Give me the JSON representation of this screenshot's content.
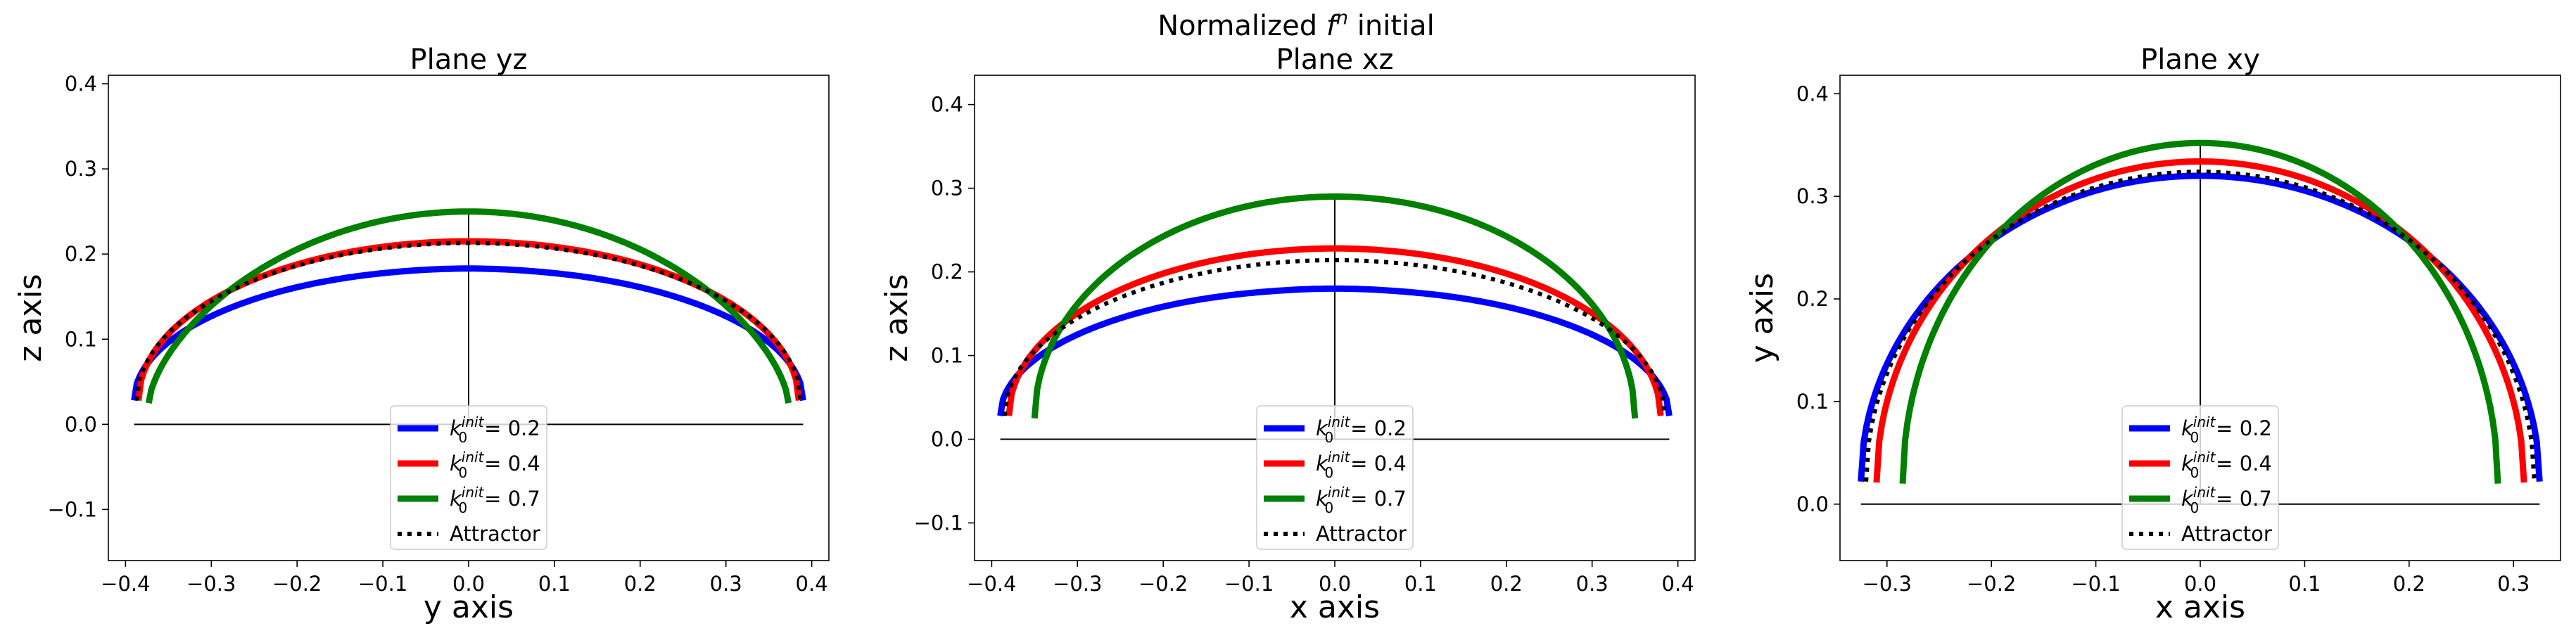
{
  "figure_title": "Normalized f^n initial",
  "colors": {
    "k02": "#0000ff",
    "k04": "#ff0000",
    "k07": "#008000",
    "attractor": "#000000",
    "axes": "#000000"
  },
  "legend_labels": [
    "k_0^init = 0.2",
    "k_0^init = 0.4",
    "k_0^init = 0.7",
    "Attractor"
  ],
  "chart_data": [
    {
      "type": "line",
      "title": "Plane yz",
      "xlabel": "y axis",
      "ylabel": "z axis",
      "xlim": [
        -0.42,
        0.42
      ],
      "ylim": [
        -0.16,
        0.41
      ],
      "xticks": [
        -0.4,
        -0.3,
        -0.2,
        -0.1,
        0.0,
        0.1,
        0.2,
        0.3,
        0.4
      ],
      "yticks": [
        -0.1,
        0.0,
        0.1,
        0.2,
        0.3,
        0.4
      ],
      "xtick_labels": [
        "−0.4",
        "−0.3",
        "−0.2",
        "−0.1",
        "0.0",
        "0.1",
        "0.2",
        "0.3",
        "0.4"
      ],
      "ytick_labels": [
        "−0.1",
        "0.0",
        "0.1",
        "0.2",
        "0.3",
        "0.4"
      ],
      "reference_lines": {
        "hline": [
          -0.39,
          0.39,
          0.0
        ],
        "vline": [
          0.0,
          0.0,
          0.25
        ]
      },
      "legend": "lower center",
      "series": [
        {
          "name": "k0=0.2",
          "color": "#0000ff",
          "style": "solid",
          "Rx": 0.39,
          "y0": 0.028,
          "Rtop": 0.183,
          "dip": 0.026,
          "sigma": 0.09
        },
        {
          "name": "k0=0.4",
          "color": "#ff0000",
          "style": "solid",
          "Rx": 0.385,
          "y0": 0.028,
          "Rtop": 0.215,
          "dip": 0.007,
          "sigma": 0.09
        },
        {
          "name": "k0=0.7",
          "color": "#008000",
          "style": "solid",
          "Rx": 0.373,
          "y0": 0.025,
          "Rtop": 0.25,
          "dip": 0.0,
          "sigma": 0.09,
          "ex": 0.15
        },
        {
          "name": "Attractor",
          "color": "#000000",
          "style": "dotted",
          "Rx": 0.387,
          "y0": 0.028,
          "Rtop": 0.213,
          "dip": 0.011,
          "sigma": 0.09
        }
      ]
    },
    {
      "type": "line",
      "title": "Plane xz",
      "xlabel": "x axis",
      "ylabel": "z axis",
      "xlim": [
        -0.42,
        0.42
      ],
      "ylim": [
        -0.145,
        0.435
      ],
      "xticks": [
        -0.4,
        -0.3,
        -0.2,
        -0.1,
        0.0,
        0.1,
        0.2,
        0.3,
        0.4
      ],
      "yticks": [
        -0.1,
        0.0,
        0.1,
        0.2,
        0.3,
        0.4
      ],
      "xtick_labels": [
        "−0.4",
        "−0.3",
        "−0.2",
        "−0.1",
        "0.0",
        "0.1",
        "0.2",
        "0.3",
        "0.4"
      ],
      "ytick_labels": [
        "−0.1",
        "0.0",
        "0.1",
        "0.2",
        "0.3",
        "0.4"
      ],
      "reference_lines": {
        "hline": [
          -0.39,
          0.39,
          0.0
        ],
        "vline": [
          0.0,
          0.0,
          0.29
        ]
      },
      "legend": "lower center",
      "series": [
        {
          "name": "k0=0.2",
          "color": "#0000ff",
          "style": "solid",
          "Rx": 0.39,
          "y0": 0.028,
          "Rtop": 0.18,
          "dip": 0.035,
          "sigma": 0.085
        },
        {
          "name": "k0=0.4",
          "color": "#ff0000",
          "style": "solid",
          "Rx": 0.38,
          "y0": 0.028,
          "Rtop": 0.228,
          "dip": 0.0,
          "sigma": 0.09
        },
        {
          "name": "k0=0.7",
          "color": "#008000",
          "style": "solid",
          "Rx": 0.35,
          "y0": 0.025,
          "Rtop": 0.29,
          "dip": 0.0,
          "sigma": 0.09
        },
        {
          "name": "Attractor",
          "color": "#000000",
          "style": "dotted",
          "Rx": 0.385,
          "y0": 0.028,
          "Rtop": 0.214,
          "dip": 0.012,
          "sigma": 0.09
        }
      ]
    },
    {
      "type": "line",
      "title": "Plane xy",
      "xlabel": "x axis",
      "ylabel": "y axis",
      "xlim": [
        -0.345,
        0.345
      ],
      "ylim": [
        -0.055,
        0.418
      ],
      "xticks": [
        -0.3,
        -0.2,
        -0.1,
        0.0,
        0.1,
        0.2,
        0.3
      ],
      "yticks": [
        0.0,
        0.1,
        0.2,
        0.3,
        0.4
      ],
      "xtick_labels": [
        "−0.3",
        "−0.2",
        "−0.1",
        "0.0",
        "0.1",
        "0.2",
        "0.3"
      ],
      "ytick_labels": [
        "0.0",
        "0.1",
        "0.2",
        "0.3",
        "0.4"
      ],
      "reference_lines": {
        "hline": [
          -0.325,
          0.325,
          0.0
        ],
        "vline": [
          0.0,
          0.0,
          0.35
        ]
      },
      "legend": "lower center",
      "series": [
        {
          "name": "k0=0.2",
          "color": "#0000ff",
          "style": "solid",
          "Rx": 0.325,
          "y0": 0.022,
          "Rtop": 0.32,
          "dip": 0.0,
          "sigma": 0.1
        },
        {
          "name": "k0=0.4",
          "color": "#ff0000",
          "style": "solid",
          "Rx": 0.31,
          "y0": 0.021,
          "Rtop": 0.334,
          "dip": 0.0,
          "sigma": 0.1
        },
        {
          "name": "k0=0.7",
          "color": "#008000",
          "style": "solid",
          "Rx": 0.285,
          "y0": 0.02,
          "Rtop": 0.352,
          "dip": 0.0,
          "sigma": 0.1
        },
        {
          "name": "Attractor",
          "color": "#000000",
          "style": "dotted",
          "Rx": 0.32,
          "y0": 0.022,
          "Rtop": 0.324,
          "dip": 0.0,
          "sigma": 0.1
        }
      ]
    }
  ]
}
